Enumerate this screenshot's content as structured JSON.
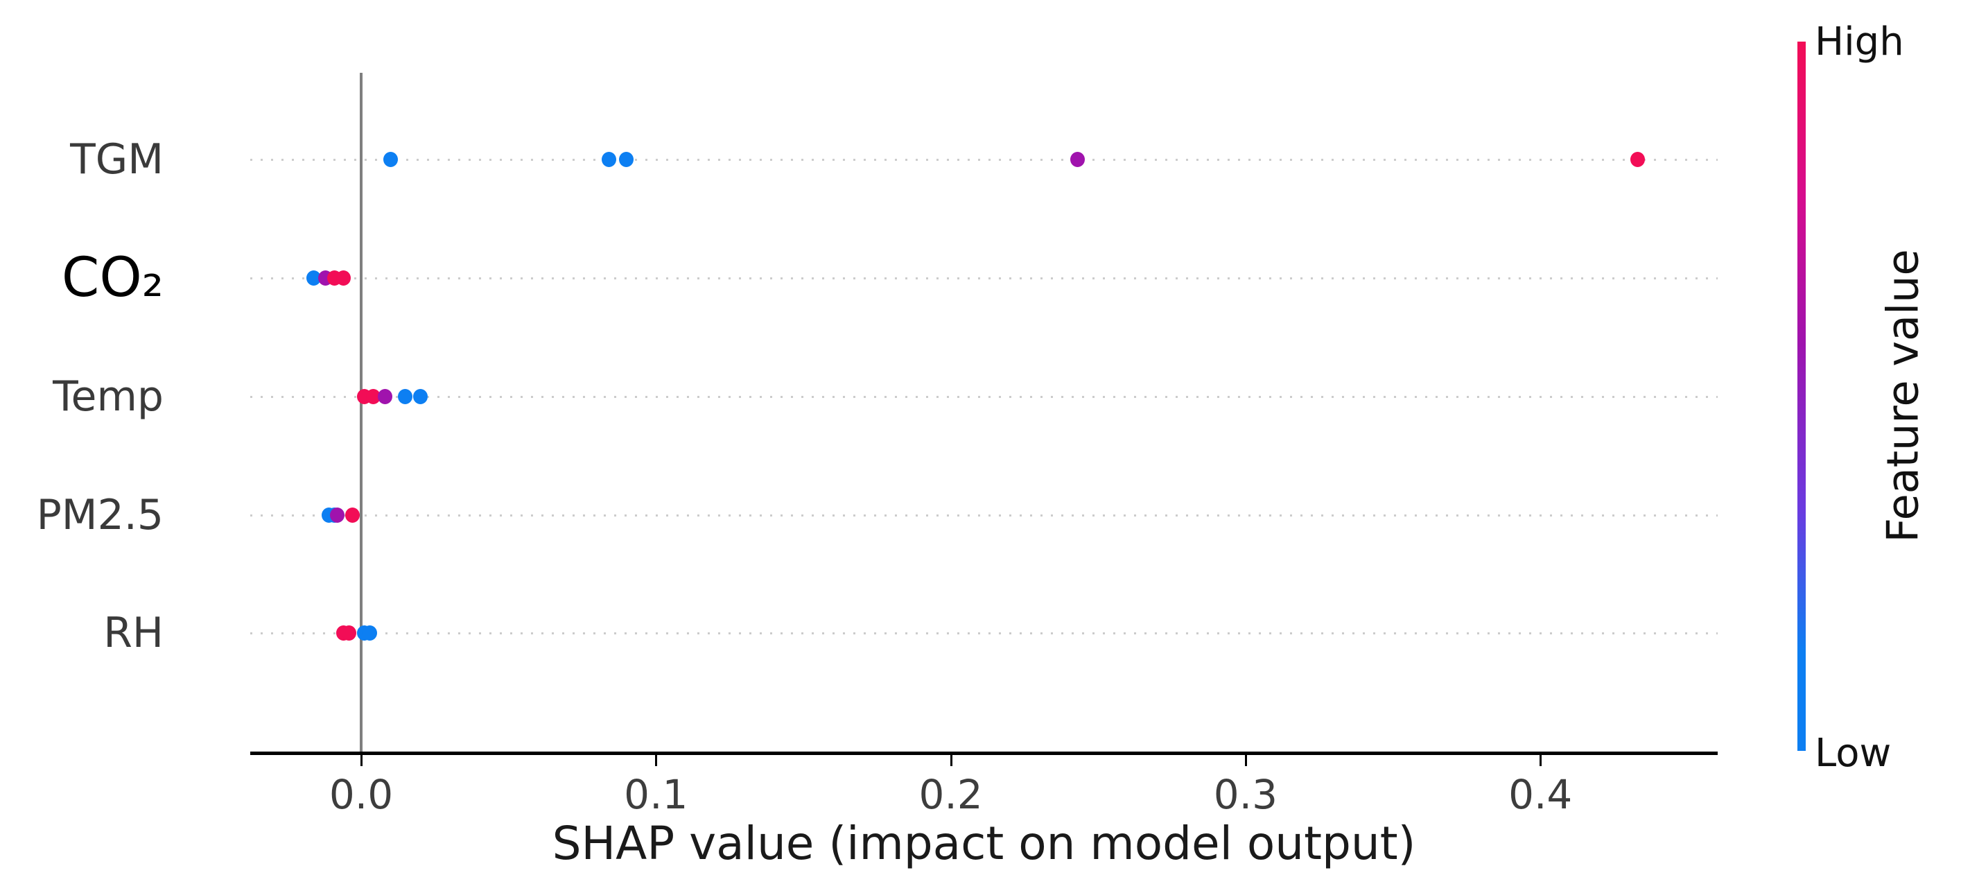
{
  "chart_data": {
    "type": "scatter",
    "variant": "shap-summary-beeswarm",
    "xlabel": "SHAP value (impact on model output)",
    "x_ticks": [
      {
        "value": 0.0,
        "label": "0.0"
      },
      {
        "value": 0.1,
        "label": "0.1"
      },
      {
        "value": 0.2,
        "label": "0.2"
      },
      {
        "value": 0.3,
        "label": "0.3"
      },
      {
        "value": 0.4,
        "label": "0.4"
      }
    ],
    "xlim": [
      -0.038,
      0.46
    ],
    "grid": "dotted horizontal line per feature row",
    "zero_reference_line": true,
    "features": [
      {
        "label": "TGM",
        "points": [
          {
            "x": 0.01,
            "level": "low"
          },
          {
            "x": 0.084,
            "level": "low"
          },
          {
            "x": 0.09,
            "level": "low"
          },
          {
            "x": 0.243,
            "level": "mid"
          },
          {
            "x": 0.433,
            "level": "high"
          }
        ]
      },
      {
        "label": "CO₂",
        "emphasis": true,
        "points": [
          {
            "x": -0.016,
            "level": "low"
          },
          {
            "x": -0.012,
            "level": "mid"
          },
          {
            "x": -0.009,
            "level": "high"
          },
          {
            "x": -0.006,
            "level": "high"
          }
        ]
      },
      {
        "label": "Temp",
        "points": [
          {
            "x": 0.001,
            "level": "high"
          },
          {
            "x": 0.004,
            "level": "high"
          },
          {
            "x": 0.008,
            "level": "mid"
          },
          {
            "x": 0.015,
            "level": "low"
          },
          {
            "x": 0.02,
            "level": "low"
          }
        ]
      },
      {
        "label": "PM2.5",
        "points": [
          {
            "x": -0.011,
            "level": "low"
          },
          {
            "x": -0.009,
            "level": "low"
          },
          {
            "x": -0.008,
            "level": "mid"
          },
          {
            "x": -0.003,
            "level": "high"
          }
        ]
      },
      {
        "label": "RH",
        "points": [
          {
            "x": -0.006,
            "level": "high"
          },
          {
            "x": -0.004,
            "level": "high"
          },
          {
            "x": 0.001,
            "level": "low"
          },
          {
            "x": 0.003,
            "level": "low"
          }
        ]
      }
    ],
    "colors": {
      "low": "#0d7ff2",
      "mid": "#a013ad",
      "high": "#f20d56",
      "gradient_mid_upper": "#d60d8e",
      "gradient_mid_lower": "#6a3be0",
      "zero_line": "#7f7f7f",
      "gridline": "#cccccc",
      "axis": "#000000"
    },
    "colorbar": {
      "label": "Feature value",
      "top_label": "High",
      "bottom_label": "Low"
    }
  }
}
